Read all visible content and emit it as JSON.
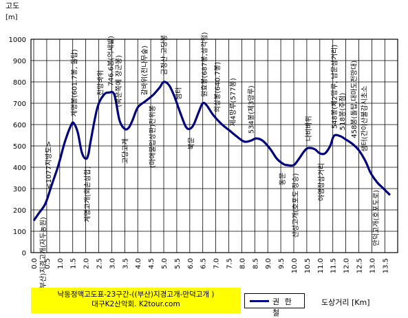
{
  "caption": {
    "line1": "낙동정맥고도표-23구간-((부산)지경고개-만덕고개 )",
    "line2": "대구K2산악회. K2tour.com"
  },
  "chart_data": {
    "type": "line",
    "ylabel": "고도",
    "yunit": "[m]",
    "xlabel": "도상거리 [Km]",
    "ylim": [
      0,
      1000
    ],
    "yticks": [
      0,
      100,
      200,
      300,
      400,
      500,
      600,
      700,
      800,
      900,
      1000
    ],
    "xlim": [
      0,
      13.75
    ],
    "xticks": [
      "0.0",
      "0.5",
      "1.0",
      "1.5",
      "2.0",
      "2.5",
      "3.0",
      "3.5",
      "4.0",
      "4.5",
      "5.0",
      "5.5",
      "6.0",
      "6.5",
      "7.0",
      "7.5",
      "8.0",
      "8.5",
      "9.0",
      "9.5",
      "10.0",
      "10.5",
      "11.0",
      "11.5",
      "12.0",
      "12.5",
      "13.0",
      "13.5"
    ],
    "grid": true,
    "series": [
      {
        "name": "권 한 철",
        "color": "#000080",
        "x": [
          0.0,
          0.2,
          0.45,
          0.7,
          0.95,
          1.2,
          1.45,
          1.55,
          1.7,
          1.85,
          2.0,
          2.1,
          2.2,
          2.45,
          2.7,
          2.9,
          3.1,
          3.3,
          3.5,
          3.65,
          3.8,
          4.0,
          4.3,
          4.6,
          4.85,
          5.0,
          5.2,
          5.4,
          5.65,
          5.85,
          6.0,
          6.15,
          6.35,
          6.5,
          6.65,
          6.9,
          7.2,
          7.5,
          7.8,
          8.1,
          8.35,
          8.55,
          8.8,
          9.1,
          9.35,
          9.6,
          9.75,
          10.0,
          10.2,
          10.4,
          10.55,
          10.8,
          11.0,
          11.2,
          11.4,
          11.55,
          11.8,
          12.0,
          12.25,
          12.5,
          12.75,
          12.95,
          13.2,
          13.45,
          13.7
        ],
        "y": [
          150,
          185,
          230,
          320,
          410,
          520,
          600,
          605,
          560,
          470,
          440,
          460,
          530,
          680,
          740,
          750,
          740,
          620,
          580,
          585,
          620,
          680,
          710,
          740,
          775,
          800,
          785,
          735,
          650,
          590,
          580,
          600,
          660,
          700,
          690,
          645,
          605,
          575,
          545,
          520,
          525,
          535,
          525,
          485,
          440,
          415,
          410,
          410,
          440,
          475,
          490,
          485,
          465,
          465,
          500,
          548,
          545,
          530,
          510,
          480,
          430,
          375,
          330,
          300,
          270
        ]
      }
    ],
    "annotations": [
      {
        "x": 0.35,
        "text": "(부산)지경고개(자두농원)"
      },
      {
        "x": 0.55,
        "text": "<1077지방도>"
      },
      {
        "x": 1.55,
        "text": "계명봉(601.7봉, 돌탑)"
      },
      {
        "x": 2.05,
        "text": "계명고개(회손삼합)"
      },
      {
        "x": 2.55,
        "text": "전망바위"
      },
      {
        "x": 2.95,
        "text": "746.6봉(억새밭)"
      },
      {
        "x": 3.25,
        "text": "(북문쪽에 장군봉)"
      },
      {
        "x": 3.5,
        "text": "고당고개"
      },
      {
        "x": 4.25,
        "text": "갈바위(전나무숲)"
      },
      {
        "x": 4.55,
        "text": "(마애불입상판)진위봉"
      },
      {
        "x": 5.0,
        "text": "금정산 고당봉"
      },
      {
        "x": 5.55,
        "text": "샘터"
      },
      {
        "x": 6.05,
        "text": "북문"
      },
      {
        "x": 6.55,
        "text": "원효봉(687봉,삼각점)"
      },
      {
        "x": 7.05,
        "text": "의상봉(640.7봉)"
      },
      {
        "x": 7.65,
        "text": "제4망루(577봉)"
      },
      {
        "x": 8.35,
        "text": "534봉(제3망루)"
      },
      {
        "x": 9.55,
        "text": "동문"
      },
      {
        "x": 10.05,
        "text": "산성고개(호포도 장승)"
      },
      {
        "x": 10.55,
        "text": "나비바위"
      },
      {
        "x": 11.05,
        "text": "야영장삼거리"
      },
      {
        "x": 11.55,
        "text": "548봉(제2망루, 남문삼거리)"
      },
      {
        "x": 11.85,
        "text": "518봉(주점)"
      },
      {
        "x": 12.3,
        "text": "458봉(돌탑,대마도전망대)"
      },
      {
        "x": 12.7,
        "text": "샘터(간이산불감시초소"
      },
      {
        "x": 13.15,
        "text": "만덕고개(호포도로)"
      }
    ]
  }
}
